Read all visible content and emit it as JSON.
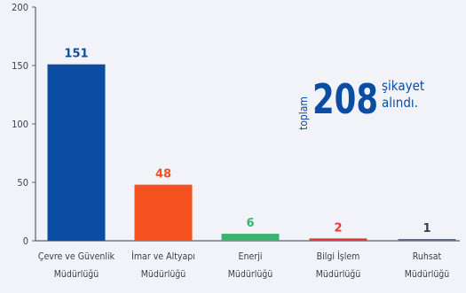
{
  "chart_data": {
    "type": "bar",
    "categories": [
      [
        "Çevre ve Güvenlik",
        "Müdürlüğü"
      ],
      [
        "İmar ve Altyapı",
        "Müdürlüğü"
      ],
      [
        "Enerji",
        "Müdürlüğü"
      ],
      [
        "Bilgi İşlem",
        "Müdürlüğü"
      ],
      [
        "Ruhsat",
        "Müdürlüğü"
      ]
    ],
    "values": [
      151,
      48,
      6,
      2,
      1
    ],
    "bar_colors": [
      "#0b4da2",
      "#f4511e",
      "#3cb371",
      "#e53935",
      "#5c6b82"
    ],
    "label_colors": [
      "#0b4da2",
      "#f4511e",
      "#3cb371",
      "#e53935",
      "#3a3f4f"
    ],
    "ylim": [
      0,
      200
    ],
    "yticks": [
      0,
      50,
      100,
      150,
      200
    ],
    "grid": false
  },
  "total_callout": {
    "word": "toplam",
    "number": "208",
    "line1": "şikayet",
    "line2": "alındı."
  }
}
